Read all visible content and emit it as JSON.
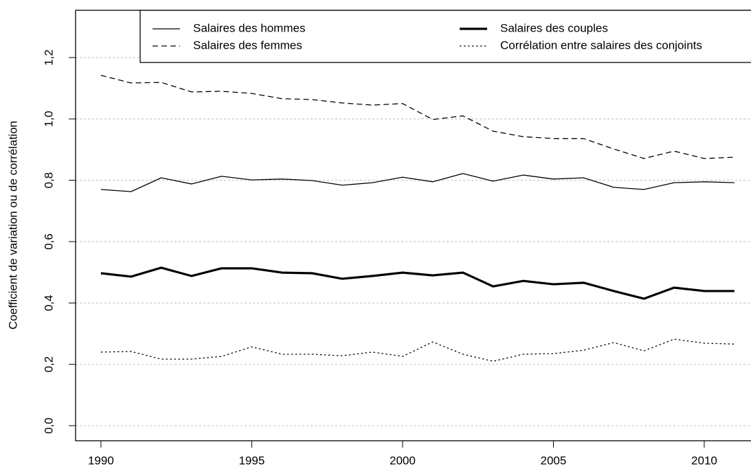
{
  "chart_data": {
    "type": "line",
    "y_label": "Coefficient de variation ou de corrélation",
    "x": [
      1990,
      1991,
      1992,
      1993,
      1994,
      1995,
      1996,
      1997,
      1998,
      1999,
      2000,
      2001,
      2002,
      2003,
      2004,
      2005,
      2006,
      2007,
      2008,
      2009,
      2010,
      2011
    ],
    "series": [
      {
        "name": "Salaires des hommes",
        "color": "#000000",
        "linestyle": "solid",
        "linewidth": 1.3,
        "values": [
          0.77,
          0.763,
          0.808,
          0.788,
          0.813,
          0.801,
          0.804,
          0.799,
          0.784,
          0.792,
          0.81,
          0.795,
          0.822,
          0.797,
          0.817,
          0.804,
          0.808,
          0.777,
          0.77,
          0.792,
          0.795,
          0.792
        ]
      },
      {
        "name": "Salaires des femmes",
        "color": "#000000",
        "linestyle": "dashed",
        "linewidth": 1.3,
        "values": [
          1.142,
          1.117,
          1.119,
          1.088,
          1.09,
          1.083,
          1.066,
          1.063,
          1.052,
          1.045,
          1.05,
          0.998,
          1.01,
          0.96,
          0.942,
          0.936,
          0.936,
          0.902,
          0.871,
          0.895,
          0.871,
          0.875
        ]
      },
      {
        "name": "Salaires des couples",
        "color": "#000000",
        "linestyle": "solid",
        "linewidth": 3.2,
        "values": [
          0.497,
          0.486,
          0.515,
          0.488,
          0.513,
          0.513,
          0.499,
          0.497,
          0.479,
          0.488,
          0.499,
          0.49,
          0.499,
          0.454,
          0.472,
          0.461,
          0.466,
          0.439,
          0.414,
          0.45,
          0.439,
          0.439
        ]
      },
      {
        "name": "Corrélation entre salaires des conjoints",
        "color": "#000000",
        "linestyle": "dotted",
        "linewidth": 1.3,
        "values": [
          0.24,
          0.242,
          0.217,
          0.217,
          0.226,
          0.257,
          0.233,
          0.233,
          0.228,
          0.24,
          0.226,
          0.273,
          0.233,
          0.21,
          0.233,
          0.235,
          0.246,
          0.271,
          0.244,
          0.282,
          0.269,
          0.266
        ]
      }
    ],
    "xlim": [
      1989.16,
      2011.55
    ],
    "xticks": [
      1990,
      1995,
      2000,
      2005,
      2010
    ],
    "ylim": [
      -0.049,
      1.354
    ],
    "yticks": [
      {
        "value": 0,
        "label": "0,0"
      },
      {
        "value": 0.2,
        "label": "0,2"
      },
      {
        "value": 0.4,
        "label": "0,4"
      },
      {
        "value": 0.6,
        "label": "0,6"
      },
      {
        "value": 0.8,
        "label": "0,8"
      },
      {
        "value": 1.0,
        "label": "1,0"
      },
      {
        "value": 1.2,
        "label": "1,2"
      }
    ],
    "grid": true,
    "legend": "top"
  }
}
